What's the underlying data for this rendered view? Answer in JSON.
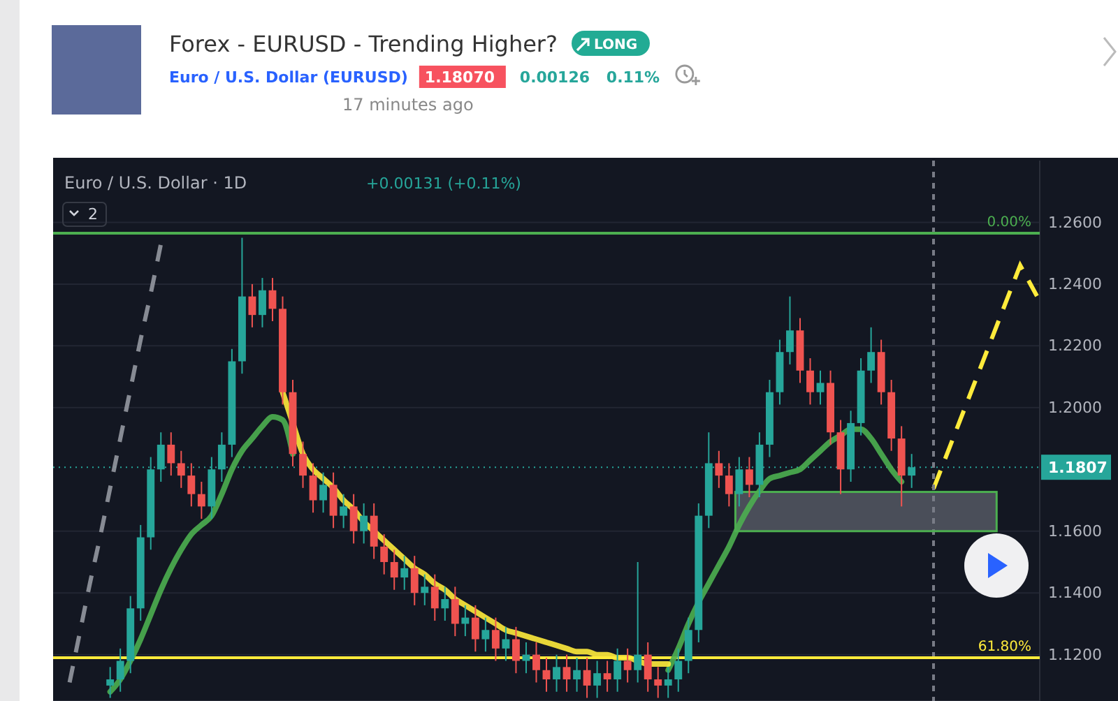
{
  "chart_data": {
    "type": "candlestick",
    "title": "Forex - EURUSD - Trending Higher?",
    "subtitle": "Euro / U.S. Dollar (EURUSD)",
    "annotations": [
      "LONG",
      "1.18070",
      "0.00126",
      "0.11%",
      "17 minutes ago",
      "Euro / U.S. Dollar · 1D",
      "+0.00131 (+0.11%)",
      "2",
      {
        "text": "0.00%",
        "y": 1.2565
      },
      {
        "text": "61.80%",
        "y": 1.119
      }
    ],
    "categories": [
      null,
      null,
      null,
      null,
      null,
      null,
      null,
      null,
      null,
      null,
      null,
      null,
      null,
      null,
      null,
      null,
      null,
      null,
      null,
      null,
      null,
      null,
      null,
      null,
      null,
      null,
      null,
      null,
      null,
      null,
      null,
      null,
      null,
      null,
      null,
      null,
      null,
      null,
      null,
      null,
      null,
      null,
      null,
      null,
      null,
      null,
      null,
      null,
      null,
      null,
      null,
      null,
      null,
      null,
      null,
      null,
      null,
      null,
      null,
      null,
      null,
      null,
      null,
      null,
      null,
      null,
      null,
      null,
      null,
      null,
      null,
      null,
      null,
      null,
      null,
      null,
      null,
      null,
      null,
      null,
      null,
      null,
      null,
      null,
      null,
      null,
      null,
      null,
      null,
      null,
      null,
      null,
      null,
      null,
      null,
      null,
      null
    ],
    "ohlc": [
      null,
      null,
      null,
      null,
      null,
      [
        1.11,
        1.116,
        1.106,
        1.112
      ],
      [
        1.112,
        1.122,
        1.108,
        1.118
      ],
      [
        1.118,
        1.139,
        1.114,
        1.135
      ],
      [
        1.135,
        1.162,
        1.131,
        1.158
      ],
      [
        1.158,
        1.184,
        1.154,
        1.18
      ],
      [
        1.18,
        1.192,
        1.176,
        1.188
      ],
      [
        1.188,
        1.192,
        1.178,
        1.182
      ],
      [
        1.182,
        1.186,
        1.174,
        1.178
      ],
      [
        1.178,
        1.182,
        1.168,
        1.172
      ],
      [
        1.172,
        1.176,
        1.164,
        1.168
      ],
      [
        1.168,
        1.184,
        1.164,
        1.18
      ],
      [
        1.18,
        1.192,
        1.176,
        1.188
      ],
      [
        1.188,
        1.219,
        1.184,
        1.215
      ],
      [
        1.215,
        1.255,
        1.211,
        1.236
      ],
      [
        1.236,
        1.24,
        1.226,
        1.23
      ],
      [
        1.23,
        1.242,
        1.226,
        1.238
      ],
      [
        1.238,
        1.242,
        1.228,
        1.232
      ],
      [
        1.232,
        1.236,
        1.201,
        1.205
      ],
      [
        1.205,
        1.209,
        1.181,
        1.185
      ],
      [
        1.185,
        1.189,
        1.174,
        1.178
      ],
      [
        1.178,
        1.182,
        1.166,
        1.17
      ],
      [
        1.17,
        1.179,
        1.166,
        1.175
      ],
      [
        1.175,
        1.179,
        1.161,
        1.165
      ],
      [
        1.165,
        1.172,
        1.161,
        1.168
      ],
      [
        1.168,
        1.172,
        1.156,
        1.16
      ],
      [
        1.16,
        1.169,
        1.156,
        1.165
      ],
      [
        1.165,
        1.169,
        1.151,
        1.155
      ],
      [
        1.155,
        1.159,
        1.146,
        1.15
      ],
      [
        1.15,
        1.154,
        1.141,
        1.145
      ],
      [
        1.145,
        1.152,
        1.141,
        1.148
      ],
      [
        1.148,
        1.152,
        1.136,
        1.14
      ],
      [
        1.14,
        1.146,
        1.136,
        1.142
      ],
      [
        1.142,
        1.146,
        1.131,
        1.135
      ],
      [
        1.135,
        1.142,
        1.131,
        1.138
      ],
      [
        1.138,
        1.142,
        1.126,
        1.13
      ],
      [
        1.13,
        1.136,
        1.126,
        1.132
      ],
      [
        1.132,
        1.136,
        1.121,
        1.125
      ],
      [
        1.125,
        1.132,
        1.121,
        1.128
      ],
      [
        1.128,
        1.132,
        1.118,
        1.122
      ],
      [
        1.122,
        1.129,
        1.118,
        1.125
      ],
      [
        1.125,
        1.129,
        1.114,
        1.118
      ],
      [
        1.118,
        1.124,
        1.114,
        1.12
      ],
      [
        1.12,
        1.124,
        1.111,
        1.115
      ],
      [
        1.115,
        1.119,
        1.108,
        1.112
      ],
      [
        1.112,
        1.12,
        1.108,
        1.116
      ],
      [
        1.116,
        1.12,
        1.108,
        1.112
      ],
      [
        1.112,
        1.119,
        1.108,
        1.115
      ],
      [
        1.115,
        1.119,
        1.106,
        1.11
      ],
      [
        1.11,
        1.118,
        1.106,
        1.114
      ],
      [
        1.114,
        1.118,
        1.108,
        1.112
      ],
      [
        1.112,
        1.122,
        1.108,
        1.118
      ],
      [
        1.118,
        1.122,
        1.111,
        1.115
      ],
      [
        1.115,
        1.15,
        1.111,
        1.12
      ],
      [
        1.12,
        1.124,
        1.108,
        1.112
      ],
      [
        1.112,
        1.116,
        1.106,
        1.11
      ],
      [
        1.11,
        1.116,
        1.106,
        1.112
      ],
      [
        1.112,
        1.122,
        1.108,
        1.118
      ],
      [
        1.118,
        1.132,
        1.114,
        1.128
      ],
      [
        1.128,
        1.169,
        1.124,
        1.165
      ],
      [
        1.165,
        1.192,
        1.161,
        1.182
      ],
      [
        1.182,
        1.186,
        1.174,
        1.178
      ],
      [
        1.178,
        1.182,
        1.168,
        1.172
      ],
      [
        1.172,
        1.184,
        1.168,
        1.18
      ],
      [
        1.18,
        1.184,
        1.171,
        1.175
      ],
      [
        1.175,
        1.192,
        1.171,
        1.188
      ],
      [
        1.188,
        1.209,
        1.184,
        1.205
      ],
      [
        1.205,
        1.222,
        1.201,
        1.218
      ],
      [
        1.218,
        1.236,
        1.214,
        1.225
      ],
      [
        1.225,
        1.229,
        1.208,
        1.212
      ],
      [
        1.212,
        1.216,
        1.201,
        1.205
      ],
      [
        1.205,
        1.212,
        1.201,
        1.208
      ],
      [
        1.208,
        1.212,
        1.188,
        1.192
      ],
      [
        1.192,
        1.196,
        1.172,
        1.18
      ],
      [
        1.18,
        1.199,
        1.176,
        1.195
      ],
      [
        1.195,
        1.216,
        1.191,
        1.212
      ],
      [
        1.212,
        1.226,
        1.208,
        1.218
      ],
      [
        1.218,
        1.222,
        1.201,
        1.205
      ],
      [
        1.205,
        1.209,
        1.186,
        1.19
      ],
      [
        1.19,
        1.194,
        1.168,
        1.178
      ],
      [
        1.178,
        1.185,
        1.174,
        1.1807
      ],
      null,
      null,
      null,
      null,
      null,
      null,
      null,
      null,
      null,
      null,
      null,
      null
    ],
    "series": [
      {
        "type": "line",
        "color": "#9598a1",
        "line_style": "dashed",
        "values": [
          null,
          1.111,
          1.127,
          1.143,
          1.158,
          1.174,
          1.19,
          1.206,
          1.222,
          1.237,
          1.253,
          null,
          null,
          null,
          null,
          null,
          null,
          null,
          null,
          null,
          null,
          null,
          null,
          null,
          null,
          null,
          null,
          null,
          null,
          null,
          null,
          null,
          null,
          null,
          null,
          null,
          null,
          null,
          null,
          null,
          null,
          null,
          null,
          null,
          null,
          null,
          null,
          null,
          null,
          null,
          null,
          null,
          null,
          null,
          null,
          null,
          null,
          null,
          null,
          null,
          null,
          null,
          null,
          null,
          null,
          null,
          null,
          null,
          null,
          null,
          null,
          null,
          null,
          null,
          null,
          null,
          null,
          null,
          null,
          null,
          null,
          null,
          null,
          null,
          null,
          null,
          null,
          null,
          null,
          null,
          null,
          null,
          null,
          null,
          null,
          null,
          null
        ]
      },
      {
        "type": "line",
        "color": "#4caf50",
        "values": [
          null,
          null,
          null,
          null,
          null,
          1.108,
          1.112,
          1.118,
          1.125,
          1.133,
          1.141,
          1.148,
          1.154,
          1.159,
          1.162,
          1.165,
          1.172,
          1.18,
          1.186,
          1.19,
          1.194,
          1.197,
          1.196,
          1.185,
          null,
          null,
          null,
          null,
          null,
          null,
          null,
          null,
          null,
          null,
          null,
          null,
          null,
          null,
          null,
          null,
          null,
          null,
          null,
          null,
          null,
          null,
          null,
          null,
          null,
          null,
          null,
          null,
          null,
          null,
          null,
          null,
          null,
          null,
          null,
          null,
          1.115,
          1.122,
          1.13,
          1.137,
          1.143,
          1.149,
          1.155,
          1.162,
          1.168,
          1.173,
          1.177,
          1.178,
          1.179,
          1.18,
          1.183,
          1.186,
          1.189,
          1.191,
          1.193,
          1.193,
          1.19,
          1.185,
          1.18,
          1.176,
          null,
          null,
          null,
          null,
          null,
          null,
          null,
          null,
          null,
          null,
          null,
          null,
          null
        ]
      },
      {
        "type": "line",
        "color": "#ffeb3b",
        "values": [
          null,
          null,
          null,
          null,
          null,
          null,
          null,
          null,
          null,
          null,
          null,
          null,
          null,
          null,
          null,
          null,
          null,
          null,
          null,
          null,
          null,
          null,
          1.205,
          1.195,
          1.185,
          1.18,
          1.177,
          1.174,
          1.17,
          1.167,
          1.163,
          1.16,
          1.157,
          1.154,
          1.151,
          1.148,
          1.146,
          1.143,
          1.141,
          1.138,
          1.136,
          1.134,
          1.132,
          1.13,
          1.128,
          1.127,
          1.126,
          1.125,
          1.124,
          1.123,
          1.122,
          1.121,
          1.121,
          1.12,
          1.12,
          1.119,
          1.119,
          1.118,
          1.117,
          1.117,
          1.117,
          null,
          null,
          null,
          null,
          null,
          null,
          null,
          null,
          null,
          null,
          null,
          null,
          null,
          null,
          null,
          null,
          null,
          null,
          null,
          null,
          null,
          null,
          null,
          null,
          null,
          null,
          null,
          null,
          null,
          null,
          null,
          null,
          null,
          null,
          null,
          null
        ]
      }
    ],
    "ylim": [
      1.105,
      1.28
    ],
    "yticks": [
      {
        "value": 1.12,
        "label": "1.1200"
      },
      {
        "value": 1.14,
        "label": "1.1400"
      },
      {
        "value": 1.16,
        "label": "1.1600"
      },
      {
        "value": 1.2,
        "label": "1.2000"
      },
      {
        "value": 1.22,
        "label": "1.2200"
      },
      {
        "value": 1.24,
        "label": "1.2400"
      },
      {
        "value": 1.26,
        "label": "1.2600"
      }
    ],
    "grid": "y",
    "tick_labels": "y",
    "bands": [
      {
        "axis": "y",
        "from": 1.16,
        "to": 1.1727,
        "color": "#787b86"
      }
    ],
    "ref_lines": [
      {
        "axis": "y",
        "value": 1.2565,
        "color": "#4caf50",
        "line_style": "solid"
      },
      {
        "axis": "y",
        "value": 1.119,
        "color": "#ffeb3b",
        "line_style": "solid"
      },
      {
        "axis": "y",
        "value": 1.1807,
        "label": "1.1807",
        "color": "#26a69a",
        "line_style": "dotted"
      }
    ]
  }
}
